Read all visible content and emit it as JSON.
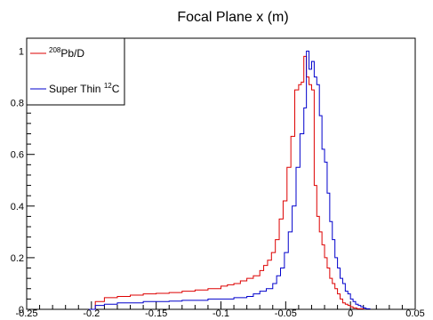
{
  "chart_data": {
    "type": "line",
    "title": "Focal Plane x (m)",
    "xlabel": "",
    "ylabel": "",
    "xlim": [
      -0.25,
      0.05
    ],
    "ylim": [
      0,
      1.05
    ],
    "x_ticks": [
      -0.25,
      -0.2,
      -0.15,
      -0.1,
      -0.05,
      0,
      0.05
    ],
    "x_tick_labels": [
      "-0.25",
      "-0.2",
      "-0.15",
      "-0.1",
      "-0.05",
      "0",
      "0.05"
    ],
    "y_ticks": [
      0,
      0.2,
      0.4,
      0.6,
      0.8,
      1
    ],
    "y_tick_labels": [
      "0",
      "0.2",
      "0.4",
      "0.6",
      "0.8",
      "1"
    ],
    "grid": false,
    "legend": {
      "placement": "top-left",
      "entries": [
        {
          "series_index": 0,
          "prefix": "",
          "sup": "208",
          "suffix": "Pb/D"
        },
        {
          "series_index": 1,
          "prefix": "Super Thin ",
          "sup": "12",
          "suffix": "C"
        }
      ]
    },
    "series": [
      {
        "name": "208Pb/D",
        "color": "#dd0000",
        "x": [
          -0.202,
          -0.197,
          -0.19,
          -0.18,
          -0.17,
          -0.16,
          -0.15,
          -0.14,
          -0.13,
          -0.12,
          -0.11,
          -0.1,
          -0.095,
          -0.09,
          -0.085,
          -0.08,
          -0.075,
          -0.07,
          -0.067,
          -0.064,
          -0.061,
          -0.058,
          -0.055,
          -0.052,
          -0.049,
          -0.046,
          -0.043,
          -0.04,
          -0.038,
          -0.036,
          -0.034,
          -0.032,
          -0.03,
          -0.028,
          -0.026,
          -0.024,
          -0.022,
          -0.02,
          -0.018,
          -0.016,
          -0.014,
          -0.012,
          -0.01,
          -0.008,
          -0.006,
          -0.004,
          -0.002,
          0.0,
          0.002,
          0.005,
          0.01
        ],
        "y": [
          0,
          0.03,
          0.045,
          0.05,
          0.055,
          0.06,
          0.062,
          0.065,
          0.07,
          0.075,
          0.08,
          0.09,
          0.095,
          0.1,
          0.11,
          0.12,
          0.13,
          0.15,
          0.17,
          0.19,
          0.22,
          0.27,
          0.35,
          0.42,
          0.55,
          0.67,
          0.85,
          0.87,
          0.88,
          0.98,
          0.9,
          0.87,
          0.85,
          0.48,
          0.36,
          0.3,
          0.25,
          0.2,
          0.16,
          0.12,
          0.1,
          0.08,
          0.06,
          0.04,
          0.025,
          0.02,
          0.015,
          0.01,
          0.005,
          0.002,
          0
        ]
      },
      {
        "name": "Super Thin 12C",
        "color": "#0000cc",
        "x": [
          -0.202,
          -0.197,
          -0.19,
          -0.18,
          -0.17,
          -0.16,
          -0.15,
          -0.14,
          -0.13,
          -0.12,
          -0.11,
          -0.1,
          -0.09,
          -0.08,
          -0.075,
          -0.07,
          -0.065,
          -0.06,
          -0.057,
          -0.054,
          -0.051,
          -0.048,
          -0.045,
          -0.042,
          -0.039,
          -0.036,
          -0.034,
          -0.032,
          -0.03,
          -0.028,
          -0.026,
          -0.024,
          -0.022,
          -0.02,
          -0.018,
          -0.016,
          -0.014,
          -0.012,
          -0.01,
          -0.008,
          -0.006,
          -0.004,
          -0.002,
          0.0,
          0.002,
          0.004,
          0.006,
          0.008,
          0.01,
          0.012,
          0.015
        ],
        "y": [
          0,
          0.015,
          0.02,
          0.025,
          0.025,
          0.03,
          0.03,
          0.032,
          0.035,
          0.035,
          0.04,
          0.04,
          0.045,
          0.05,
          0.06,
          0.07,
          0.08,
          0.1,
          0.13,
          0.16,
          0.22,
          0.3,
          0.4,
          0.55,
          0.68,
          0.78,
          1.0,
          0.93,
          0.96,
          0.9,
          0.87,
          0.75,
          0.62,
          0.57,
          0.45,
          0.34,
          0.27,
          0.2,
          0.16,
          0.12,
          0.1,
          0.07,
          0.06,
          0.04,
          0.03,
          0.02,
          0.015,
          0.01,
          0.005,
          0.002,
          0
        ]
      }
    ]
  }
}
